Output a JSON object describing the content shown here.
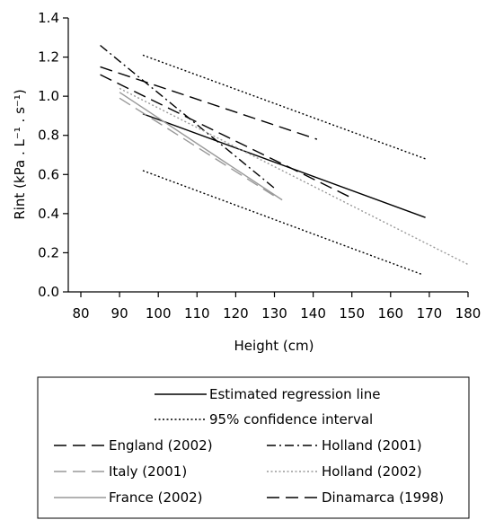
{
  "chart_data": {
    "type": "line",
    "title": "",
    "xlabel": "Height (cm)",
    "ylabel": "Rint (kPa . L⁻¹ . s⁻¹)",
    "xlim": [
      80,
      180
    ],
    "ylim": [
      0.0,
      1.4
    ],
    "xticks": [
      80,
      90,
      100,
      110,
      120,
      130,
      140,
      150,
      160,
      170,
      180
    ],
    "yticks": [
      0.0,
      0.2,
      0.4,
      0.6,
      0.8,
      1.0,
      1.2,
      1.4
    ],
    "xtick_labels": [
      "80",
      "90",
      "100",
      "110",
      "120",
      "130",
      "140",
      "150",
      "160",
      "170",
      "180"
    ],
    "ytick_labels": [
      "0.0",
      "0.2",
      "0.4",
      "0.6",
      "0.8",
      "1.0",
      "1.2",
      "1.4"
    ],
    "grid": false,
    "legend_position": "bottom",
    "series": [
      {
        "name": "Estimated regression line",
        "style": "solid",
        "color": "#000000",
        "x": [
          96,
          169
        ],
        "y": [
          0.91,
          0.38
        ]
      },
      {
        "name": "95% confidence interval",
        "style": "dotted",
        "color": "#000000",
        "x": [
          96,
          169
        ],
        "y": [
          1.21,
          0.68
        ]
      },
      {
        "name": "95% confidence interval",
        "style": "dotted",
        "color": "#000000",
        "x": [
          96,
          168
        ],
        "y": [
          0.62,
          0.09
        ]
      },
      {
        "name": "England (2002)",
        "style": "long-dash",
        "color": "#000000",
        "x": [
          85,
          141
        ],
        "y": [
          1.15,
          0.78
        ]
      },
      {
        "name": "Holland (2001)",
        "style": "dash-dot",
        "color": "#000000",
        "x": [
          85,
          130
        ],
        "y": [
          1.26,
          0.53
        ]
      },
      {
        "name": "Italy (2001)",
        "style": "long-dash",
        "color": "#999999",
        "x": [
          90,
          130
        ],
        "y": [
          0.99,
          0.49
        ]
      },
      {
        "name": "Holland (2002)",
        "style": "dotted",
        "color": "#999999",
        "x": [
          90,
          180
        ],
        "y": [
          1.04,
          0.14
        ]
      },
      {
        "name": "France (2002)",
        "style": "solid",
        "color": "#999999",
        "x": [
          90,
          132
        ],
        "y": [
          1.02,
          0.47
        ]
      },
      {
        "name": "Dinamarca (1998)",
        "style": "long-dash",
        "color": "#000000",
        "x": [
          85,
          150
        ],
        "y": [
          1.11,
          0.48
        ]
      }
    ]
  },
  "legend": [
    {
      "label": "Estimated regression line",
      "style": "solid",
      "color": "#000000"
    },
    {
      "label": "95% confidence interval",
      "style": "dotted",
      "color": "#000000"
    },
    {
      "label": "England (2002)",
      "style": "long-dash",
      "color": "#000000"
    },
    {
      "label": "Holland (2001)",
      "style": "dash-dot",
      "color": "#000000"
    },
    {
      "label": "Italy (2001)",
      "style": "long-dash",
      "color": "#999999"
    },
    {
      "label": "Holland (2002)",
      "style": "dotted",
      "color": "#999999"
    },
    {
      "label": "France (2002)",
      "style": "solid",
      "color": "#999999"
    },
    {
      "label": "Dinamarca (1998)",
      "style": "long-dash",
      "color": "#000000"
    }
  ]
}
